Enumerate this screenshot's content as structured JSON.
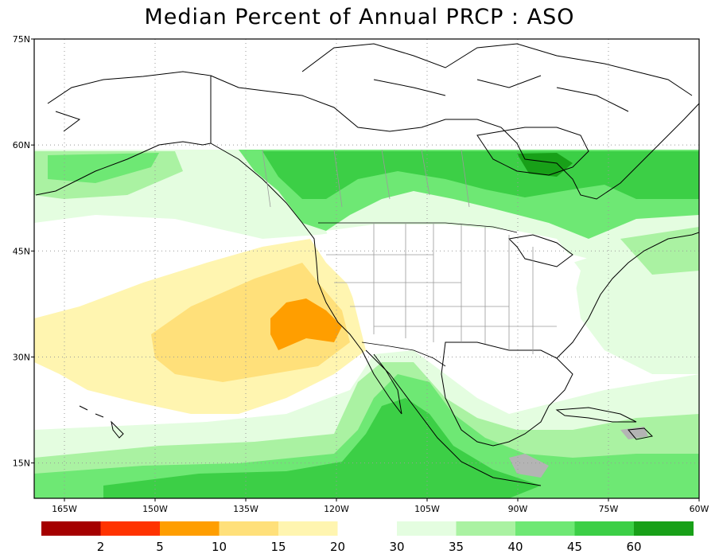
{
  "title": "Median Percent of Annual PRCP  :  ASO",
  "map": {
    "lat_range": [
      10,
      75
    ],
    "lon_range": [
      -170,
      -60
    ],
    "lat_ticks": [
      {
        "value": 15,
        "label": "15N"
      },
      {
        "value": 30,
        "label": "30N"
      },
      {
        "value": 45,
        "label": "45N"
      },
      {
        "value": 60,
        "label": "60N"
      },
      {
        "value": 75,
        "label": "75N"
      }
    ],
    "lon_ticks": [
      {
        "value": -165,
        "label": "165W"
      },
      {
        "value": -150,
        "label": "150W"
      },
      {
        "value": -135,
        "label": "135W"
      },
      {
        "value": -120,
        "label": "120W"
      },
      {
        "value": -105,
        "label": "105W"
      },
      {
        "value": -90,
        "label": "90W"
      },
      {
        "value": -75,
        "label": "75W"
      },
      {
        "value": -60,
        "label": "60W"
      }
    ],
    "grid": true
  },
  "colorbar": {
    "colors": [
      "#a50000",
      "#ff3300",
      "#ff9e00",
      "#ffe07a",
      "#fff5b0",
      "#ffffff",
      "#e4fde0",
      "#aaf2a2",
      "#6ee874",
      "#3ccf46",
      "#18a018"
    ],
    "labels": [
      "2",
      "5",
      "10",
      "15",
      "20",
      "30",
      "35",
      "40",
      "45",
      "60"
    ]
  },
  "palette": {
    "land_outline": "#000000",
    "grid": "#999999",
    "states": "#9a9a9a",
    "land_no_data": "#ffffff",
    "caribbean_gray": "#b4b4b4"
  }
}
